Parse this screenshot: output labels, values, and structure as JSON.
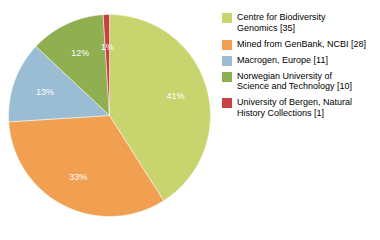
{
  "chart_data": {
    "type": "pie",
    "categories": [
      "Centre for Biodiversity\nGenomics [35]",
      "Mined from GenBank, NCBI [28]",
      "Macrogen, Europe [11]",
      "Norwegian University of\nScience and Technology [10]",
      "University of Bergen, Natural\nHistory Collections [1]"
    ],
    "values": [
      41,
      33,
      13,
      12,
      1
    ],
    "value_labels": [
      "41%",
      "33%",
      "13%",
      "12%",
      "1%"
    ],
    "colors": [
      "#c8d46e",
      "#f0a050",
      "#9bbdd4",
      "#8faf50",
      "#c84040"
    ],
    "data_labels": true,
    "legend": "right"
  }
}
